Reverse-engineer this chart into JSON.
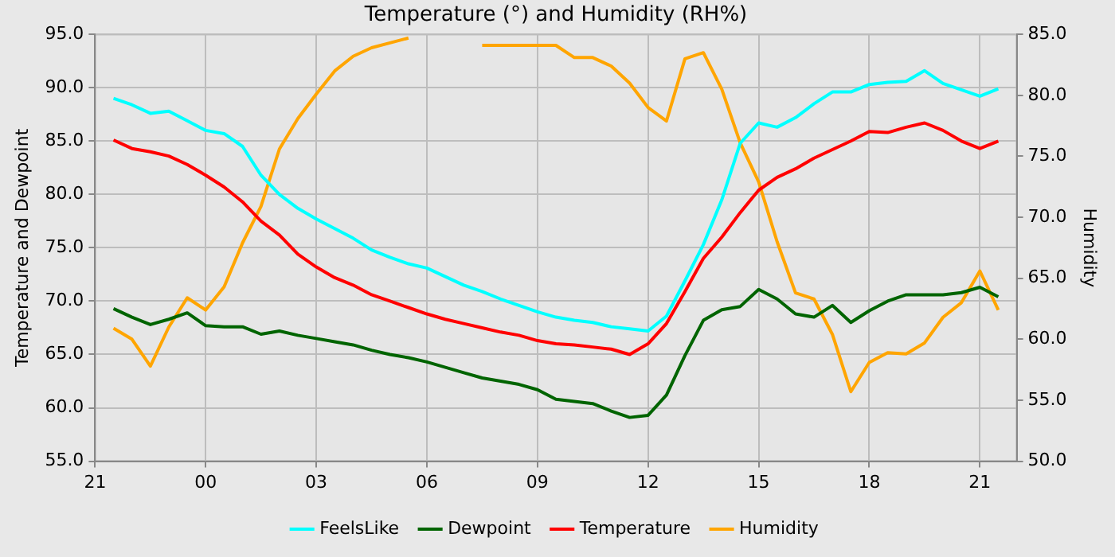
{
  "chart_data": {
    "type": "line",
    "title": "Temperature (°) and Humidity (RH%)",
    "ylabel": "Temperature and Dewpoint",
    "y2label": "Humidity",
    "categories": [
      "21",
      null,
      null,
      null,
      null,
      null,
      "00",
      null,
      null,
      null,
      null,
      null,
      "03",
      null,
      null,
      null,
      null,
      null,
      "06",
      null,
      null,
      null,
      null,
      null,
      "09",
      null,
      null,
      null,
      null,
      null,
      "12",
      null,
      null,
      null,
      null,
      null,
      "15",
      null,
      null,
      null,
      null,
      null,
      "18",
      null,
      null,
      null,
      null,
      null,
      "21",
      null,
      null
    ],
    "ylim": [
      55,
      95
    ],
    "yticks": [
      {
        "value": 55,
        "label": "55.0"
      },
      {
        "value": 60,
        "label": "60.0"
      },
      {
        "value": 65,
        "label": "65.0"
      },
      {
        "value": 70,
        "label": "70.0"
      },
      {
        "value": 75,
        "label": "75.0"
      },
      {
        "value": 80,
        "label": "80.0"
      },
      {
        "value": 85,
        "label": "85.0"
      },
      {
        "value": 90,
        "label": "90.0"
      },
      {
        "value": 95,
        "label": "95.0"
      }
    ],
    "y2lim": [
      50,
      85
    ],
    "y2ticks": [
      {
        "value": 50,
        "label": "50.0"
      },
      {
        "value": 55,
        "label": "55.0"
      },
      {
        "value": 60,
        "label": "60.0"
      },
      {
        "value": 65,
        "label": "65.0"
      },
      {
        "value": 70,
        "label": "70.0"
      },
      {
        "value": 75,
        "label": "75.0"
      },
      {
        "value": 80,
        "label": "80.0"
      },
      {
        "value": 85,
        "label": "85.0"
      }
    ],
    "grid": true,
    "legend": "bottom",
    "marker": "none",
    "line_style": "solid",
    "series": [
      {
        "name": "FeelsLike",
        "color": "#00ffff",
        "values": [
          null,
          89.0,
          88.4,
          87.6,
          87.8,
          86.9,
          86.0,
          85.7,
          84.5,
          81.8,
          80.0,
          78.7,
          77.7,
          76.8,
          75.9,
          74.8,
          74.1,
          73.5,
          73.1,
          72.3,
          71.5,
          70.9,
          70.2,
          69.6,
          69.0,
          68.5,
          68.2,
          68.0,
          67.6,
          67.4,
          67.2,
          68.6,
          71.9,
          75.3,
          79.5,
          84.8,
          86.7,
          86.3,
          87.2,
          88.5,
          89.6,
          89.6,
          90.3,
          90.5,
          90.6,
          91.6,
          90.4,
          89.8,
          89.2,
          89.9,
          null
        ]
      },
      {
        "name": "Dewpoint",
        "color": "#006400",
        "values": [
          null,
          69.3,
          68.5,
          67.8,
          68.3,
          68.9,
          67.7,
          67.6,
          67.6,
          66.9,
          67.2,
          66.8,
          66.5,
          66.2,
          65.9,
          65.4,
          65.0,
          64.7,
          64.3,
          63.8,
          63.3,
          62.8,
          62.5,
          62.2,
          61.7,
          60.8,
          60.6,
          60.4,
          59.7,
          59.1,
          59.3,
          61.2,
          64.9,
          68.2,
          69.2,
          69.5,
          71.1,
          70.2,
          68.8,
          68.5,
          69.6,
          68.0,
          69.1,
          70.0,
          70.6,
          70.6,
          70.6,
          70.8,
          71.3,
          70.4,
          null
        ]
      },
      {
        "name": "Temperature",
        "color": "#ff0000",
        "values": [
          null,
          85.1,
          84.3,
          84.0,
          83.6,
          82.8,
          81.8,
          80.7,
          79.3,
          77.5,
          76.2,
          74.4,
          73.2,
          72.2,
          71.5,
          70.6,
          70.0,
          69.4,
          68.8,
          68.3,
          67.9,
          67.5,
          67.1,
          66.8,
          66.3,
          66.0,
          65.9,
          65.7,
          65.5,
          65.0,
          66.0,
          67.9,
          70.9,
          74.0,
          76.0,
          78.3,
          80.4,
          81.6,
          82.4,
          83.4,
          84.2,
          85.0,
          85.9,
          85.8,
          86.3,
          86.7,
          86.0,
          85.0,
          84.3,
          85.0,
          null
        ]
      },
      {
        "name": "Humidity",
        "color": "#ffa500",
        "axis": "y2",
        "values": [
          null,
          60.9,
          60.0,
          57.8,
          61.0,
          63.4,
          62.4,
          64.3,
          67.9,
          70.9,
          75.6,
          78.1,
          80.1,
          82.0,
          83.2,
          83.9,
          84.3,
          84.7,
          null,
          null,
          null,
          84.1,
          84.1,
          84.1,
          84.1,
          84.1,
          83.1,
          83.1,
          82.4,
          81.0,
          79.0,
          77.9,
          83.0,
          83.5,
          80.5,
          76.1,
          72.9,
          68.0,
          63.8,
          63.3,
          60.4,
          55.7,
          58.1,
          58.9,
          58.8,
          59.7,
          61.8,
          63.0,
          65.6,
          62.4,
          null
        ]
      }
    ]
  }
}
